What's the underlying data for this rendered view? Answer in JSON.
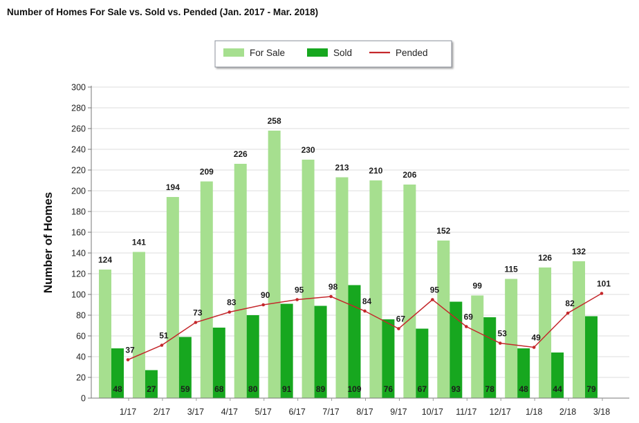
{
  "chart_data": {
    "type": "bar",
    "title": "Number of Homes For Sale vs. Sold vs. Pended (Jan. 2017 - Mar. 2018)",
    "ylabel": "Number of Homes",
    "ylim": [
      0,
      300
    ],
    "yticks": [
      0,
      20,
      40,
      60,
      80,
      100,
      120,
      140,
      160,
      180,
      200,
      220,
      240,
      260,
      280,
      300
    ],
    "grid": true,
    "legend_position": "top-center",
    "categories": [
      "1/17",
      "2/17",
      "3/17",
      "4/17",
      "5/17",
      "6/17",
      "7/17",
      "8/17",
      "9/17",
      "10/17",
      "11/17",
      "12/17",
      "1/18",
      "2/18",
      "3/18"
    ],
    "series": [
      {
        "name": "For Sale",
        "type": "bar",
        "color": "#a6df8f",
        "values": [
          124,
          141,
          194,
          209,
          226,
          258,
          230,
          213,
          210,
          206,
          152,
          99,
          115,
          126,
          132
        ]
      },
      {
        "name": "Sold",
        "type": "bar",
        "color": "#17a71f",
        "values": [
          48,
          27,
          59,
          68,
          80,
          91,
          89,
          109,
          76,
          67,
          93,
          78,
          48,
          44,
          79
        ]
      },
      {
        "name": "Pended",
        "type": "line",
        "color": "#c4272b",
        "values": [
          37,
          51,
          73,
          83,
          90,
          95,
          98,
          84,
          67,
          95,
          69,
          53,
          49,
          82,
          101
        ]
      }
    ]
  }
}
